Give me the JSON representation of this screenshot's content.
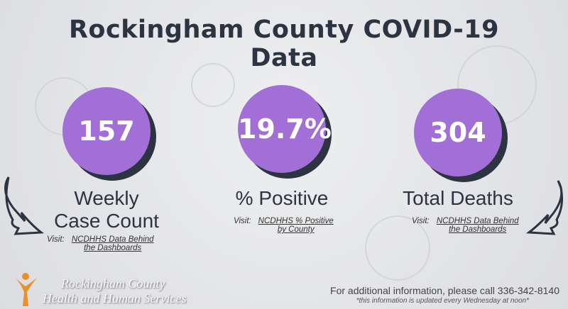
{
  "header": {
    "title": "Rockingham County COVID-19 Data"
  },
  "stats": [
    {
      "value": "157",
      "label": "Weekly Case Count",
      "visit": "Visit:",
      "link": "NCDHHS Data Behind the Dashboards"
    },
    {
      "value": "19.7%",
      "label": "% Positive",
      "visit": "Visit:",
      "link": "NCDHHS % Positive by County"
    },
    {
      "value": "304",
      "label": "Total Deaths",
      "visit": "Visit:",
      "link": "NCDHHS Data Behind the Dashboards"
    }
  ],
  "logo": {
    "line1": "Rockingham County",
    "line2": "Health and Human Services"
  },
  "footer": {
    "contact": "For additional information, please call 336-342-8140",
    "note": "*this information is updated every Wednesday at noon*"
  }
}
